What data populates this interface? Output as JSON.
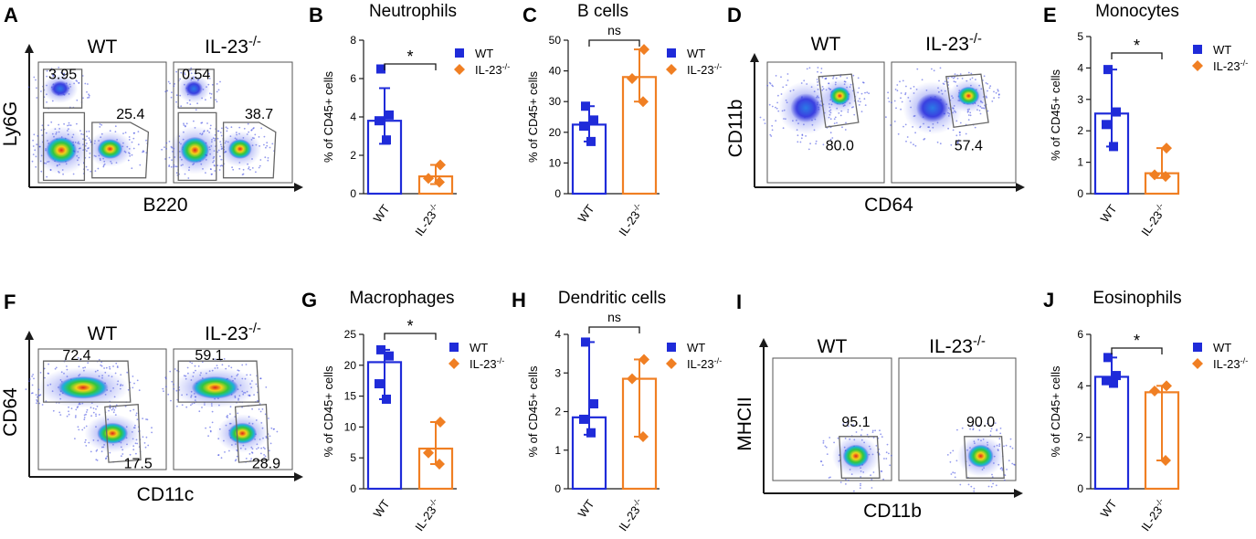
{
  "chart_data": [
    {
      "panel": "A",
      "type": "flow-cytometry",
      "samples": [
        "WT",
        "IL-23-/-"
      ],
      "xlabel": "B220",
      "ylabel": "Ly6G",
      "gates": [
        [
          "3.95",
          "25.4"
        ],
        [
          "0.54",
          "38.7"
        ]
      ]
    },
    {
      "panel": "B",
      "type": "bar",
      "title": "Neutrophils",
      "ylabel": "% of CD45+ cells",
      "ylim": [
        0,
        8
      ],
      "yticks": [
        0,
        2,
        4,
        6,
        8
      ],
      "categories": [
        "WT",
        "IL-23-/-"
      ],
      "series": [
        {
          "name": "WT",
          "value": 3.8,
          "error": [
            2.6,
            5.5
          ],
          "points": [
            6.5,
            4.1,
            3.8,
            2.8
          ]
        },
        {
          "name": "IL-23-/-",
          "value": 0.9,
          "error": [
            0.5,
            1.5
          ],
          "points": [
            1.5,
            0.8,
            0.6
          ]
        }
      ],
      "significance": "*"
    },
    {
      "panel": "C",
      "type": "bar",
      "title": "B cells",
      "ylabel": "% of CD45+ cells",
      "ylim": [
        0,
        50
      ],
      "yticks": [
        0,
        10,
        20,
        30,
        40,
        50
      ],
      "categories": [
        "WT",
        "IL-23-/-"
      ],
      "series": [
        {
          "name": "WT",
          "value": 22.5,
          "error": [
            17,
            28.5
          ],
          "points": [
            28.5,
            24,
            22,
            17
          ]
        },
        {
          "name": "IL-23-/-",
          "value": 38,
          "error": [
            30,
            47
          ],
          "points": [
            47,
            37.5,
            30
          ]
        }
      ],
      "significance": "ns"
    },
    {
      "panel": "D",
      "type": "flow-cytometry",
      "samples": [
        "WT",
        "IL-23-/-"
      ],
      "xlabel": "CD64",
      "ylabel": "CD11b",
      "gates": [
        [
          "80.0"
        ],
        [
          "57.4"
        ]
      ]
    },
    {
      "panel": "E",
      "type": "bar",
      "title": "Monocytes",
      "ylabel": "% of CD45+ cells",
      "ylim": [
        0,
        5
      ],
      "yticks": [
        0,
        1,
        2,
        3,
        4,
        5
      ],
      "categories": [
        "WT",
        "IL-23-/-"
      ],
      "series": [
        {
          "name": "WT",
          "value": 2.55,
          "error": [
            1.5,
            3.95
          ],
          "points": [
            3.95,
            2.6,
            2.2,
            1.5
          ]
        },
        {
          "name": "IL-23-/-",
          "value": 0.65,
          "error": [
            0.5,
            1.45
          ],
          "points": [
            1.45,
            0.6,
            0.55
          ]
        }
      ],
      "significance": "*"
    },
    {
      "panel": "F",
      "type": "flow-cytometry",
      "samples": [
        "WT",
        "IL-23-/-"
      ],
      "xlabel": "CD11c",
      "ylabel": "CD64",
      "gates": [
        [
          "72.4",
          "17.5"
        ],
        [
          "59.1",
          "28.9"
        ]
      ]
    },
    {
      "panel": "G",
      "type": "bar",
      "title": "Macrophages",
      "ylabel": "% of CD45+ cells",
      "ylim": [
        0,
        25
      ],
      "yticks": [
        0,
        5,
        10,
        15,
        20,
        25
      ],
      "categories": [
        "WT",
        "IL-23-/-"
      ],
      "series": [
        {
          "name": "WT",
          "value": 20.5,
          "error": [
            14.5,
            22.5
          ],
          "points": [
            22.5,
            21.5,
            17,
            14.5
          ]
        },
        {
          "name": "IL-23-/-",
          "value": 6.5,
          "error": [
            4,
            10.8
          ],
          "points": [
            10.8,
            5.8,
            4
          ]
        }
      ],
      "significance": "*"
    },
    {
      "panel": "H",
      "type": "bar",
      "title": "Dendritic cells",
      "ylabel": "% of CD45+ cells",
      "ylim": [
        0,
        4
      ],
      "yticks": [
        0,
        1,
        2,
        3,
        4
      ],
      "categories": [
        "WT",
        "IL-23-/-"
      ],
      "series": [
        {
          "name": "WT",
          "value": 1.85,
          "error": [
            1.4,
            3.8
          ],
          "points": [
            3.8,
            2.2,
            1.8,
            1.45
          ]
        },
        {
          "name": "IL-23-/-",
          "value": 2.85,
          "error": [
            1.35,
            3.35
          ],
          "points": [
            3.35,
            2.85,
            1.35
          ]
        }
      ],
      "significance": "ns"
    },
    {
      "panel": "I",
      "type": "flow-cytometry",
      "samples": [
        "WT",
        "IL-23-/-"
      ],
      "xlabel": "CD11b",
      "ylabel": "MHCII",
      "gates": [
        [
          "95.1"
        ],
        [
          "90.0"
        ]
      ]
    },
    {
      "panel": "J",
      "type": "bar",
      "title": "Eosinophils",
      "ylabel": "% of CD45+ cells",
      "ylim": [
        0,
        6
      ],
      "yticks": [
        0,
        2,
        4,
        6
      ],
      "categories": [
        "WT",
        "IL-23-/-"
      ],
      "series": [
        {
          "name": "WT",
          "value": 4.35,
          "error": [
            4.1,
            5.1
          ],
          "points": [
            5.1,
            4.4,
            4.2,
            4.1
          ]
        },
        {
          "name": "IL-23-/-",
          "value": 3.75,
          "error": [
            1.1,
            4.0
          ],
          "points": [
            4.0,
            3.8,
            1.1
          ]
        }
      ],
      "significance": "*"
    }
  ],
  "colors": {
    "wt": "#1f2bd9",
    "ko": "#f07f23",
    "axis": "#1a1a1a",
    "gate": "#666666"
  }
}
